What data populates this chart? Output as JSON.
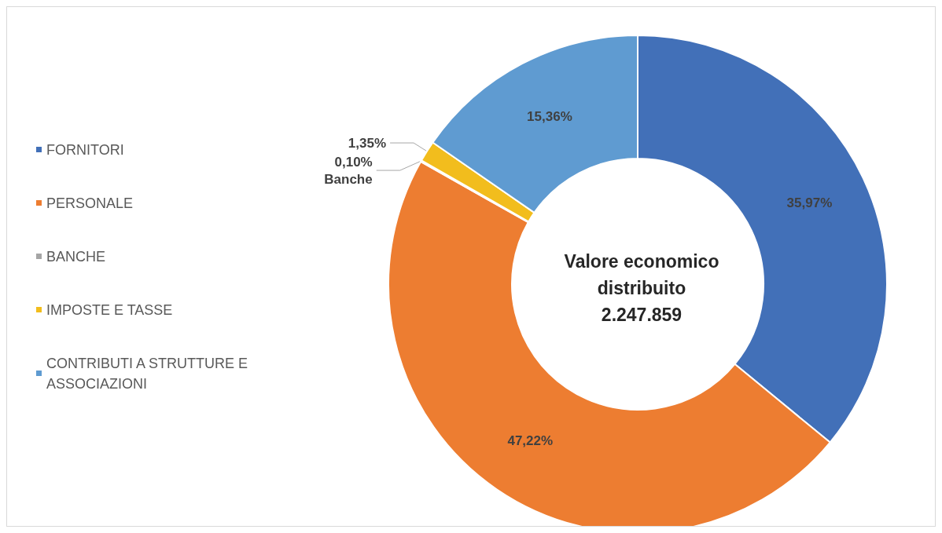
{
  "chart_data": {
    "type": "donut",
    "categories": [
      "FORNITORI",
      "PERSONALE",
      "BANCHE",
      "IMPOSTE E TASSE",
      "CONTRIBUTI A STRUTTURE E ASSOCIAZIONI"
    ],
    "values": [
      35.97,
      47.22,
      0.1,
      1.35,
      15.36
    ],
    "colors": [
      "#4270b8",
      "#ed7d31",
      "#a5a5a5",
      "#f2bd1d",
      "#5f9bd1"
    ],
    "value_labels": [
      "35,97%",
      "47,22%",
      "0,10%\nBanche",
      "1,35%",
      "15,36%"
    ],
    "annotations": [
      "Valore economico\ndistribuito\n2.247.859"
    ],
    "legend": "left"
  }
}
